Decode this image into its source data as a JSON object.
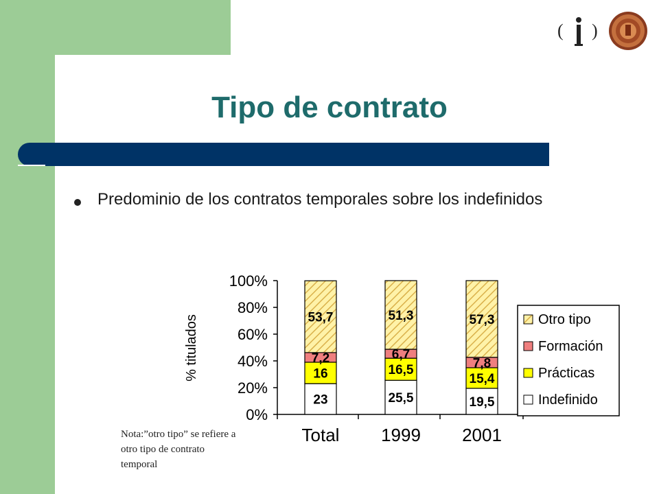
{
  "slide": {
    "title": "Tipo de contrato",
    "bullet": "Predominio de los contratos temporales sobre los indefinidos",
    "note": "Nota:”otro tipo” se refiere a otro tipo de contrato temporal",
    "logo": {
      "left_paren": "(",
      "right_paren": ")",
      "mark": "i"
    }
  },
  "colors": {
    "green_frame": "#9ccc96",
    "title": "#1e6b6b",
    "navy_band": "#003366",
    "otro_tipo": "#fff2a8",
    "otro_tipo_hatch": "#d9b04a",
    "formacion": "#ef7f7f",
    "practicas": "#ffff00",
    "indefinido": "#ffffff"
  },
  "chart_data": {
    "type": "bar",
    "stacked": true,
    "percent": true,
    "categories": [
      "Total",
      "1999",
      "2001"
    ],
    "ylabel": "% titulados",
    "ylim": [
      0,
      100
    ],
    "yticks": [
      "0%",
      "20%",
      "40%",
      "60%",
      "80%",
      "100%"
    ],
    "series": [
      {
        "name": "Indefinido",
        "values": [
          23,
          25.5,
          19.5
        ],
        "labels": [
          "23",
          "25,5",
          "19,5"
        ],
        "color": "#ffffff"
      },
      {
        "name": "Prácticas",
        "values": [
          16,
          16.5,
          15.4
        ],
        "labels": [
          "16",
          "16,5",
          "15,4"
        ],
        "color": "#ffff00"
      },
      {
        "name": "Formación",
        "values": [
          7.2,
          6.7,
          7.8
        ],
        "labels": [
          "7,2",
          "6,7",
          "7,8"
        ],
        "color": "#ef7f7f"
      },
      {
        "name": "Otro tipo",
        "values": [
          53.7,
          51.3,
          57.3
        ],
        "labels": [
          "53,7",
          "51,3",
          "57,3"
        ],
        "color": "#fff2a8",
        "pattern": "hatch"
      }
    ],
    "legend": {
      "position": "right",
      "order": [
        "Otro tipo",
        "Formación",
        "Prácticas",
        "Indefinido"
      ]
    }
  }
}
